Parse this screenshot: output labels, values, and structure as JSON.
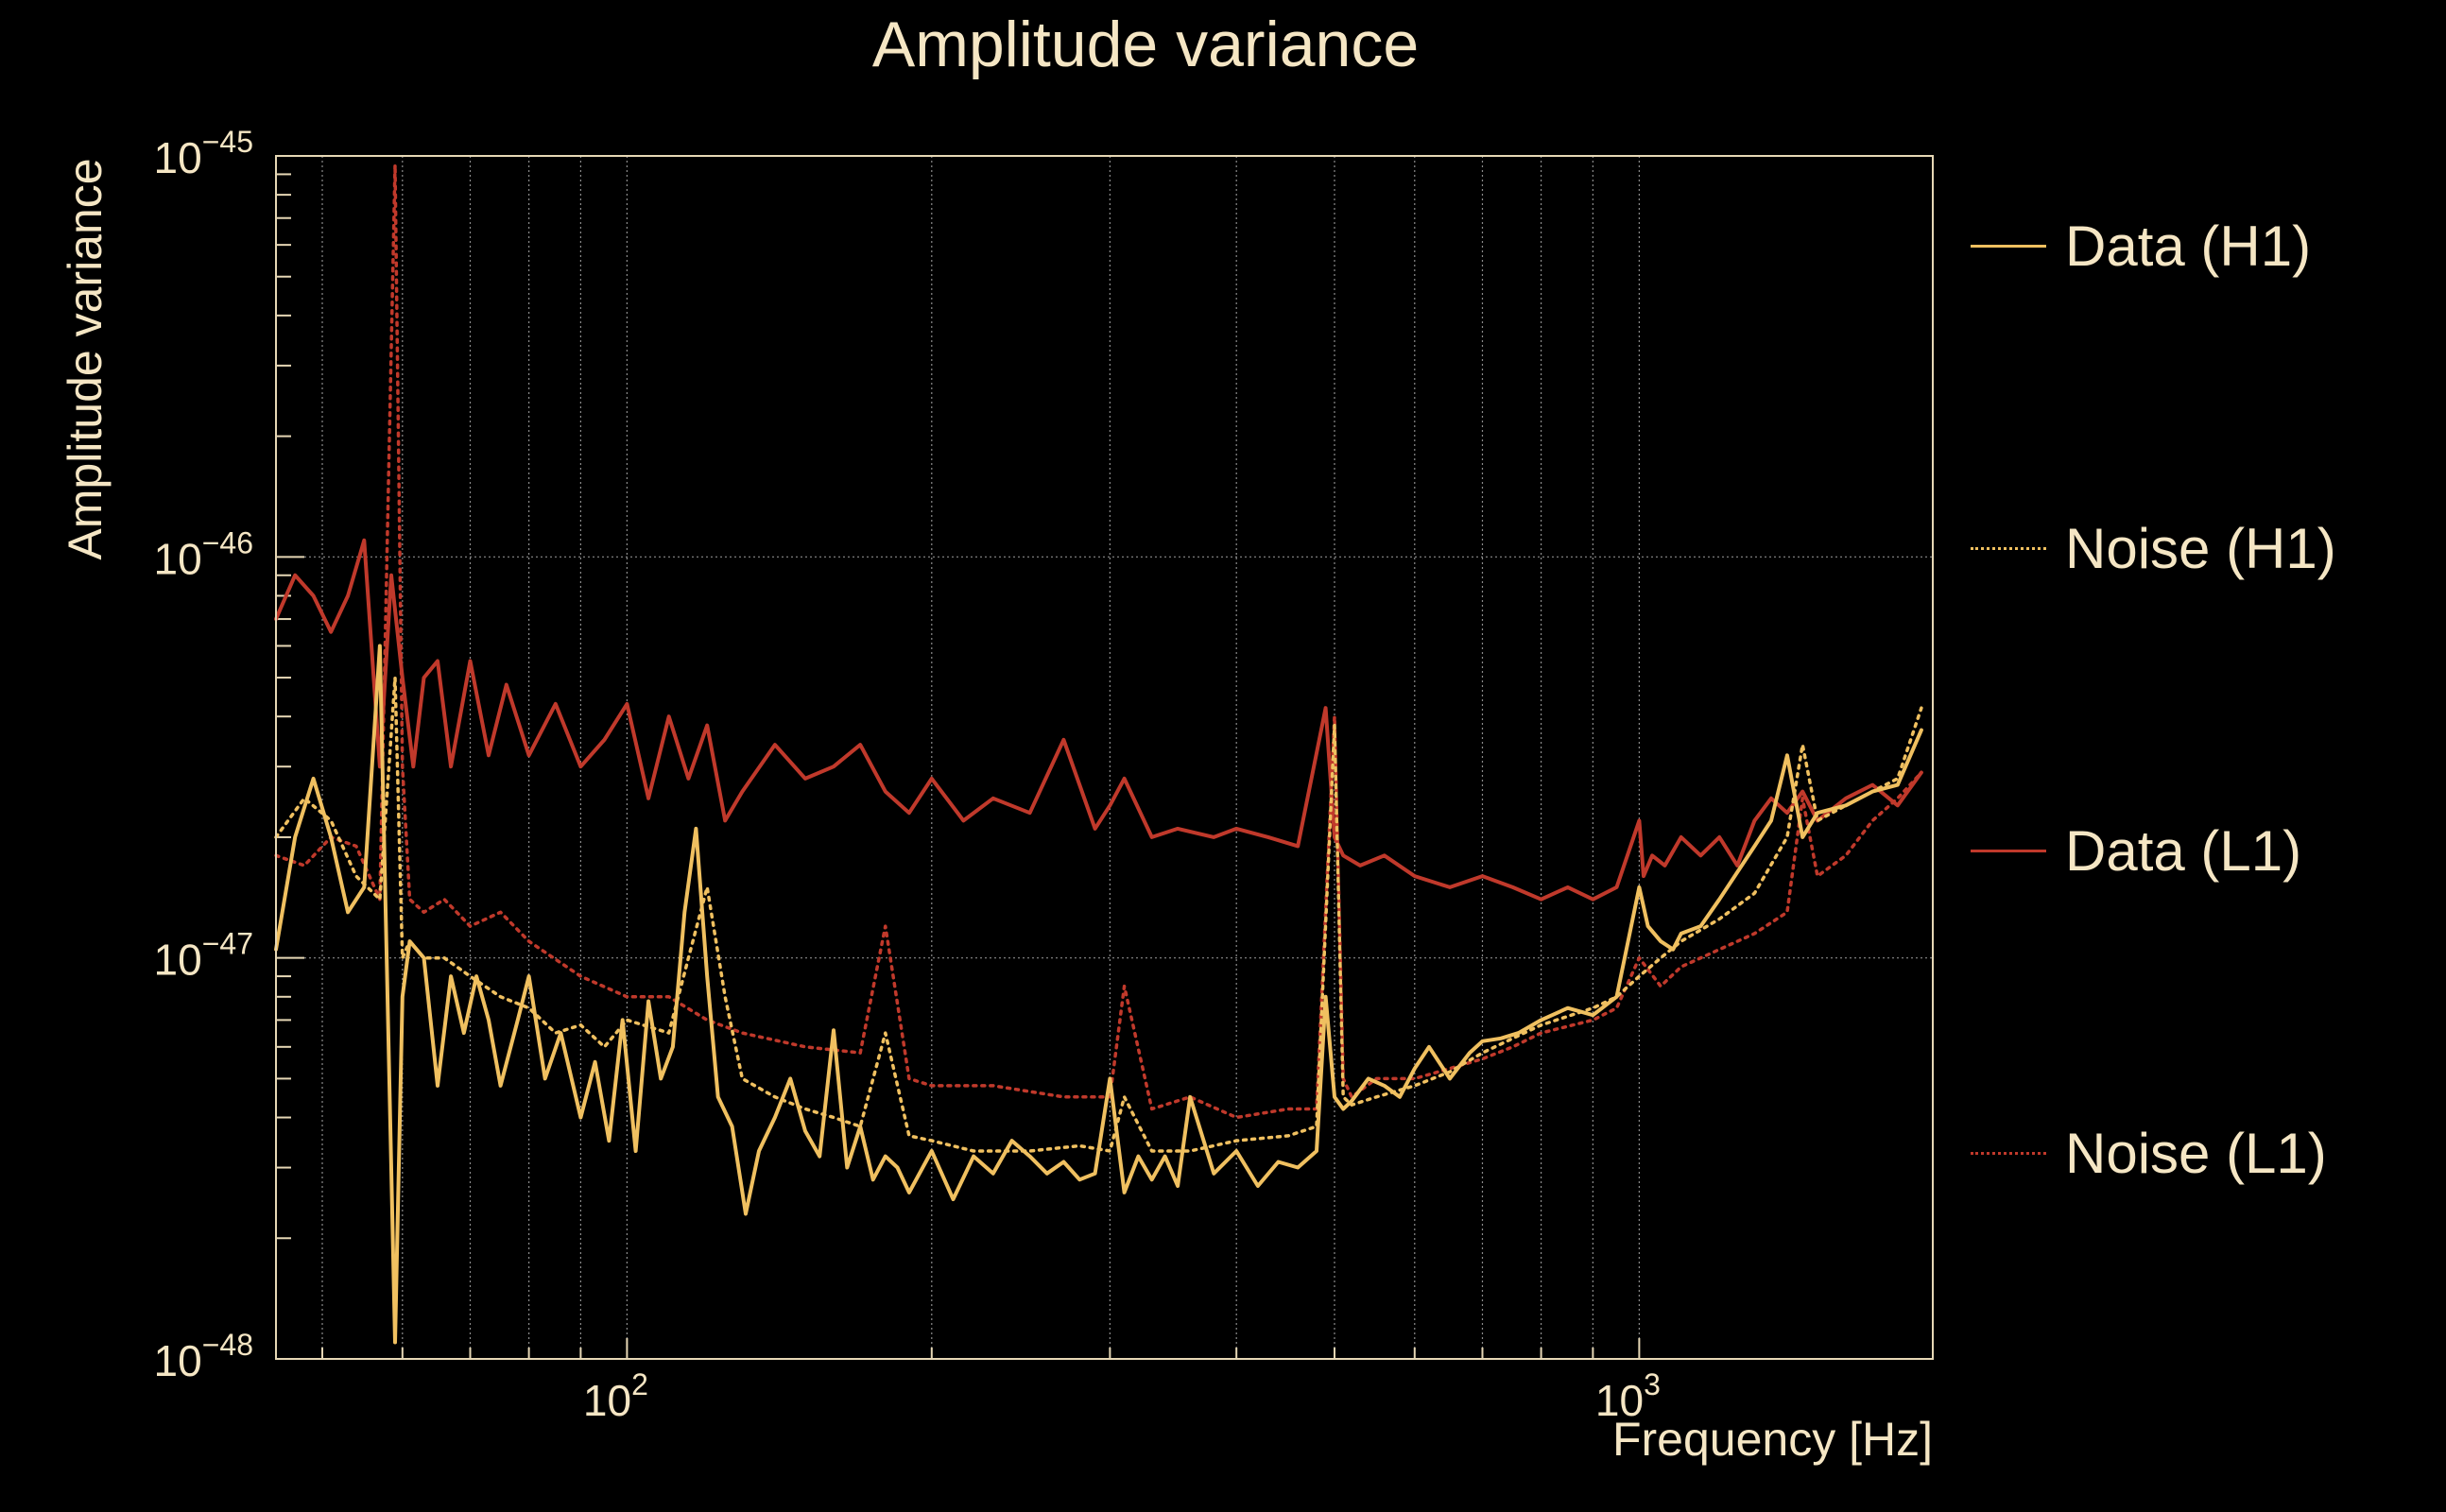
{
  "chart_data": {
    "type": "line",
    "title": "Amplitude variance",
    "xlabel": "Frequency [Hz]",
    "ylabel": "Amplitude variance",
    "xscale": "log",
    "yscale": "log",
    "xlim": [
      45,
      1950
    ],
    "ylim": [
      1e-48,
      1e-45
    ],
    "grid": true,
    "legend_position": "right",
    "x_tick_labels": [
      "10^2",
      "10^3"
    ],
    "y_tick_labels": [
      "10^-48",
      "10^-47",
      "10^-46",
      "10^-45"
    ],
    "series": [
      {
        "name": "Data (L1)",
        "color": "#c0392b",
        "style": "solid",
        "x": [
          45,
          47,
          49,
          51,
          53,
          55,
          57,
          58.5,
          60,
          61.5,
          63,
          65,
          67,
          70,
          73,
          76,
          80,
          85,
          90,
          95,
          100,
          105,
          110,
          115,
          120,
          125,
          130,
          140,
          150,
          160,
          170,
          180,
          190,
          200,
          215,
          230,
          250,
          270,
          290,
          300,
          310,
          330,
          350,
          380,
          400,
          430,
          460,
          490,
          500,
          510,
          530,
          560,
          600,
          650,
          700,
          750,
          800,
          850,
          900,
          950,
          1000,
          1010,
          1030,
          1060,
          1100,
          1150,
          1200,
          1250,
          1300,
          1350,
          1400,
          1450,
          1500,
          1600,
          1700,
          1800,
          1900
        ],
        "y": [
          7e-47,
          9e-47,
          8e-47,
          6.5e-47,
          8e-47,
          1.1e-46,
          3e-47,
          9e-47,
          5e-47,
          3e-47,
          5e-47,
          5.5e-47,
          3e-47,
          5.5e-47,
          3.2e-47,
          4.8e-47,
          3.2e-47,
          4.3e-47,
          3e-47,
          3.5e-47,
          4.3e-47,
          2.5e-47,
          4e-47,
          2.8e-47,
          3.8e-47,
          2.2e-47,
          2.6e-47,
          3.4e-47,
          2.8e-47,
          3e-47,
          3.4e-47,
          2.6e-47,
          2.3e-47,
          2.8e-47,
          2.2e-47,
          2.5e-47,
          2.3e-47,
          3.5e-47,
          2.1e-47,
          2.4e-47,
          2.8e-47,
          2e-47,
          2.1e-47,
          2e-47,
          2.1e-47,
          2e-47,
          1.9e-47,
          4.2e-47,
          2e-47,
          1.8e-47,
          1.7e-47,
          1.8e-47,
          1.6e-47,
          1.5e-47,
          1.6e-47,
          1.5e-47,
          1.4e-47,
          1.5e-47,
          1.4e-47,
          1.5e-47,
          2.2e-47,
          1.6e-47,
          1.8e-47,
          1.7e-47,
          2e-47,
          1.8e-47,
          2e-47,
          1.7e-47,
          2.2e-47,
          2.5e-47,
          2.3e-47,
          2.6e-47,
          2.2e-47,
          2.5e-47,
          2.7e-47,
          2.4e-47,
          2.9e-47
        ]
      },
      {
        "name": "Noise (L1)",
        "color": "#c0392b",
        "style": "dotted",
        "x": [
          45,
          48,
          51,
          54,
          57,
          59,
          60,
          61,
          63,
          66,
          70,
          75,
          80,
          90,
          100,
          110,
          120,
          130,
          150,
          170,
          180,
          190,
          200,
          230,
          270,
          300,
          310,
          330,
          360,
          400,
          450,
          480,
          500,
          510,
          520,
          550,
          600,
          650,
          700,
          750,
          800,
          900,
          950,
          1000,
          1050,
          1100,
          1200,
          1300,
          1400,
          1450,
          1500,
          1600,
          1700,
          1800,
          1900
        ],
        "y": [
          1.8e-47,
          1.7e-47,
          2e-47,
          1.9e-47,
          1.4e-47,
          9.5e-46,
          3e-47,
          1.4e-47,
          1.3e-47,
          1.4e-47,
          1.2e-47,
          1.3e-47,
          1.1e-47,
          9e-48,
          8e-48,
          8e-48,
          7e-48,
          6.5e-48,
          6e-48,
          5.8e-48,
          1.2e-47,
          5e-48,
          4.8e-48,
          4.8e-48,
          4.5e-48,
          4.5e-48,
          8.5e-48,
          4.2e-48,
          4.5e-48,
          4e-48,
          4.2e-48,
          4.2e-48,
          4e-47,
          5e-48,
          4.5e-48,
          5e-48,
          5e-48,
          5.3e-48,
          5.6e-48,
          6e-48,
          6.5e-48,
          7e-48,
          7.5e-48,
          1e-47,
          8.5e-48,
          9.5e-48,
          1.05e-47,
          1.15e-47,
          1.3e-47,
          2.5e-47,
          1.6e-47,
          1.8e-47,
          2.2e-47,
          2.5e-47,
          2.9e-47
        ]
      },
      {
        "name": "Data (H1)",
        "color": "#f0c060",
        "style": "solid",
        "x": [
          45,
          47,
          49,
          51,
          53,
          55,
          57,
          59,
          60,
          61,
          63,
          65,
          67,
          69,
          71,
          73,
          75,
          78,
          80,
          83,
          86,
          90,
          93,
          96,
          99,
          102,
          105,
          108,
          111,
          114,
          117,
          120,
          123,
          127,
          131,
          135,
          140,
          145,
          150,
          155,
          160,
          165,
          170,
          175,
          180,
          185,
          190,
          200,
          210,
          220,
          230,
          240,
          250,
          260,
          270,
          280,
          290,
          300,
          310,
          320,
          330,
          340,
          350,
          360,
          380,
          400,
          420,
          440,
          460,
          480,
          490,
          500,
          510,
          520,
          540,
          560,
          580,
          600,
          620,
          650,
          680,
          700,
          730,
          760,
          800,
          850,
          900,
          950,
          1000,
          1020,
          1050,
          1080,
          1100,
          1150,
          1200,
          1300,
          1350,
          1400,
          1450,
          1500,
          1600,
          1700,
          1800,
          1900
        ],
        "y": [
          1.05e-47,
          2e-47,
          2.8e-47,
          2e-47,
          1.3e-47,
          1.5e-47,
          6e-47,
          1.1e-48,
          8e-48,
          1.1e-47,
          1e-47,
          4.8e-48,
          9e-48,
          6.5e-48,
          9e-48,
          7e-48,
          4.8e-48,
          7e-48,
          9e-48,
          5e-48,
          6.5e-48,
          4e-48,
          5.5e-48,
          3.5e-48,
          7e-48,
          3.3e-48,
          7.8e-48,
          5e-48,
          6e-48,
          1.3e-47,
          2.1e-47,
          9e-48,
          4.5e-48,
          3.8e-48,
          2.3e-48,
          3.3e-48,
          4e-48,
          5e-48,
          3.7e-48,
          3.2e-48,
          6.6e-48,
          3e-48,
          3.8e-48,
          2.8e-48,
          3.2e-48,
          3e-48,
          2.6e-48,
          3.3e-48,
          2.5e-48,
          3.2e-48,
          2.9e-48,
          3.5e-48,
          3.2e-48,
          2.9e-48,
          3.1e-48,
          2.8e-48,
          2.9e-48,
          5e-48,
          2.6e-48,
          3.2e-48,
          2.8e-48,
          3.2e-48,
          2.7e-48,
          4.5e-48,
          2.9e-48,
          3.3e-48,
          2.7e-48,
          3.1e-48,
          3e-48,
          3.3e-48,
          8e-48,
          4.5e-48,
          4.2e-48,
          4.4e-48,
          5e-48,
          4.8e-48,
          4.5e-48,
          5.3e-48,
          6e-48,
          5e-48,
          5.8e-48,
          6.2e-48,
          6.3e-48,
          6.5e-48,
          7e-48,
          7.5e-48,
          7.2e-48,
          8e-48,
          1.5e-47,
          1.2e-47,
          1.1e-47,
          1.05e-47,
          1.15e-47,
          1.2e-47,
          1.4e-47,
          1.9e-47,
          2.2e-47,
          3.2e-47,
          2e-47,
          2.3e-47,
          2.4e-47,
          2.6e-47,
          2.7e-47,
          3.7e-47
        ]
      },
      {
        "name": "Noise (H1)",
        "color": "#f0c060",
        "style": "dotted",
        "x": [
          45,
          48,
          51,
          54,
          57,
          59,
          60,
          61,
          63,
          66,
          70,
          75,
          80,
          85,
          90,
          95,
          100,
          110,
          115,
          120,
          125,
          130,
          140,
          150,
          160,
          170,
          180,
          190,
          200,
          220,
          250,
          280,
          300,
          310,
          330,
          360,
          400,
          450,
          480,
          500,
          510,
          520,
          550,
          600,
          650,
          700,
          750,
          800,
          900,
          950,
          1000,
          1050,
          1100,
          1200,
          1300,
          1400,
          1450,
          1500,
          1600,
          1700,
          1800,
          1900
        ],
        "y": [
          2e-47,
          2.5e-47,
          2.2e-47,
          1.6e-47,
          1.4e-47,
          5e-47,
          1e-47,
          1.1e-47,
          1e-47,
          1e-47,
          9e-48,
          8e-48,
          7.5e-48,
          6.5e-48,
          6.8e-48,
          6e-48,
          7e-48,
          6.5e-48,
          1e-47,
          1.5e-47,
          8e-48,
          5e-48,
          4.5e-48,
          4.2e-48,
          4e-48,
          3.8e-48,
          6.5e-48,
          3.6e-48,
          3.5e-48,
          3.3e-48,
          3.3e-48,
          3.4e-48,
          3.3e-48,
          4.5e-48,
          3.3e-48,
          3.3e-48,
          3.5e-48,
          3.6e-48,
          3.8e-48,
          3.8e-47,
          4.5e-48,
          4.3e-48,
          4.5e-48,
          4.8e-48,
          5.2e-48,
          5.8e-48,
          6.3e-48,
          6.8e-48,
          7.5e-48,
          8e-48,
          9e-48,
          1e-47,
          1.1e-47,
          1.25e-47,
          1.45e-47,
          2e-47,
          3.4e-47,
          2.2e-47,
          2.4e-47,
          2.6e-47,
          2.8e-47,
          4.2e-47
        ]
      }
    ],
    "legend": [
      {
        "label": "Data (H1)",
        "color": "#f0c060",
        "style": "solid"
      },
      {
        "label": "Noise (H1)",
        "color": "#f0c060",
        "style": "dotted"
      },
      {
        "label": "Data (L1)",
        "color": "#c0392b",
        "style": "solid"
      },
      {
        "label": "Noise (L1)",
        "color": "#c0392b",
        "style": "dotted"
      }
    ]
  }
}
